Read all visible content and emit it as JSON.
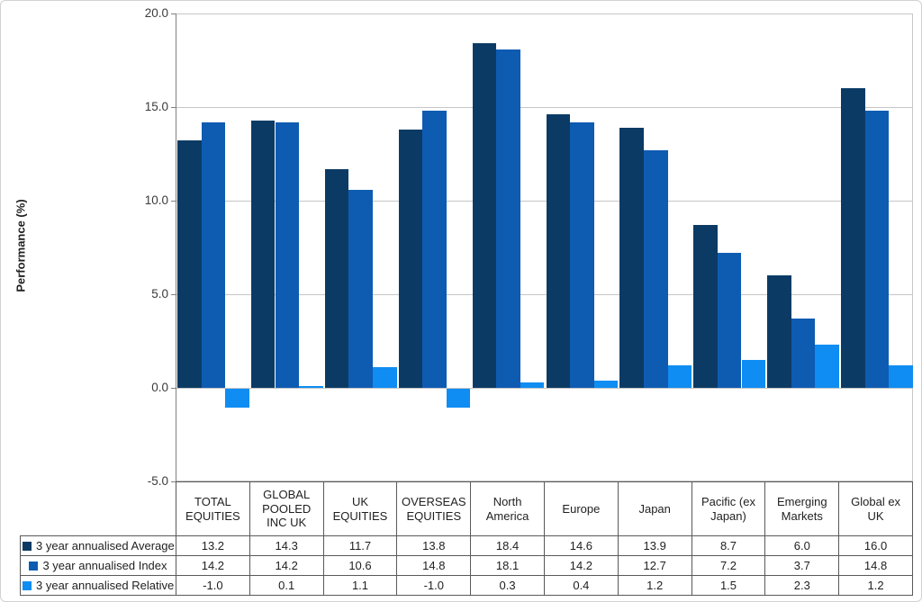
{
  "chart_data": {
    "type": "bar",
    "title": "",
    "xlabel": "",
    "ylabel": "Performance (%)",
    "ylim": [
      -5.0,
      20.0
    ],
    "yticks": [
      20.0,
      15.0,
      10.0,
      5.0,
      0.0,
      -5.0
    ],
    "grid": true,
    "legend_position": "table-left",
    "categories": [
      "TOTAL EQUITIES",
      "GLOBAL POOLED INC UK",
      "UK EQUITIES",
      "OVERSEAS EQUITIES",
      "North America",
      "Europe",
      "Japan",
      "Pacific (ex Japan)",
      "Emerging Markets",
      "Global ex UK"
    ],
    "series": [
      {
        "name": "3 year annualised Average",
        "color": "#0b3b65",
        "values": [
          13.2,
          14.3,
          11.7,
          13.8,
          18.4,
          14.6,
          13.9,
          8.7,
          6.0,
          16.0
        ]
      },
      {
        "name": "3 year annualised Index",
        "color": "#0e5bb2",
        "values": [
          14.2,
          14.2,
          10.6,
          14.8,
          18.1,
          14.2,
          12.7,
          7.2,
          3.7,
          14.8
        ]
      },
      {
        "name": "3 year annualised Relative",
        "color": "#0f8df2",
        "values": [
          -1.0,
          0.1,
          1.1,
          -1.0,
          0.3,
          0.4,
          1.2,
          1.5,
          2.3,
          1.2
        ]
      }
    ],
    "value_format_decimals": 1
  },
  "style_colors": {
    "gridline": "#c6c6c6",
    "axis_line": "#808080",
    "table_border": "#595959"
  }
}
